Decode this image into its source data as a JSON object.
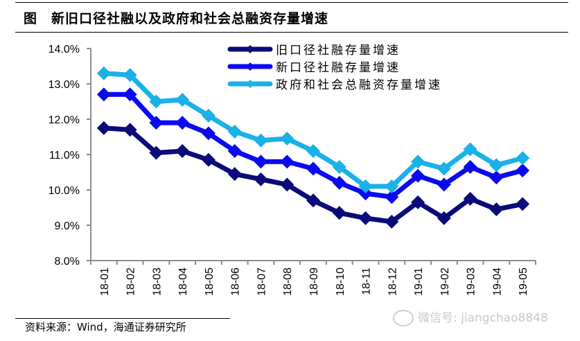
{
  "header": {
    "figure_label": "图",
    "title": "新旧口径社融以及政府和社会总融资存量增速"
  },
  "footer": {
    "source": "资料来源：Wind，海通证券研究所",
    "watermark": "微信号: jiangchao8848"
  },
  "chart_data": {
    "type": "line",
    "title": "新旧口径社融以及政府和社会总融资存量增速",
    "xlabel": "",
    "ylabel": "",
    "ylim": [
      8.0,
      14.0
    ],
    "yticks": [
      "8.0%",
      "9.0%",
      "10.0%",
      "11.0%",
      "12.0%",
      "13.0%",
      "14.0%"
    ],
    "ytick_values": [
      8,
      9,
      10,
      11,
      12,
      13,
      14
    ],
    "grid": false,
    "legend_position": "top-right",
    "categories": [
      "18-01",
      "18-02",
      "18-03",
      "18-04",
      "18-05",
      "18-06",
      "18-07",
      "18-08",
      "18-09",
      "18-10",
      "18-11",
      "18-12",
      "19-01",
      "19-02",
      "19-03",
      "19-04",
      "19-05"
    ],
    "series": [
      {
        "name": "旧口径社融存量增速",
        "color": "#0a0a7a",
        "values": [
          11.75,
          11.7,
          11.05,
          11.1,
          10.85,
          10.45,
          10.3,
          10.15,
          9.7,
          9.35,
          9.2,
          9.1,
          9.65,
          9.2,
          9.75,
          9.45,
          9.6
        ]
      },
      {
        "name": "新口径社融存量增速",
        "color": "#0a0af0",
        "values": [
          12.7,
          12.7,
          11.9,
          11.9,
          11.6,
          11.1,
          10.8,
          10.8,
          10.6,
          10.2,
          9.9,
          9.8,
          10.4,
          10.15,
          10.65,
          10.35,
          10.55
        ]
      },
      {
        "name": "政府和社会总融资存量增速",
        "color": "#1ab0e8",
        "values": [
          13.3,
          13.25,
          12.5,
          12.55,
          12.1,
          11.65,
          11.4,
          11.45,
          11.1,
          10.65,
          10.1,
          10.1,
          10.8,
          10.6,
          11.15,
          10.7,
          10.9
        ]
      }
    ]
  }
}
